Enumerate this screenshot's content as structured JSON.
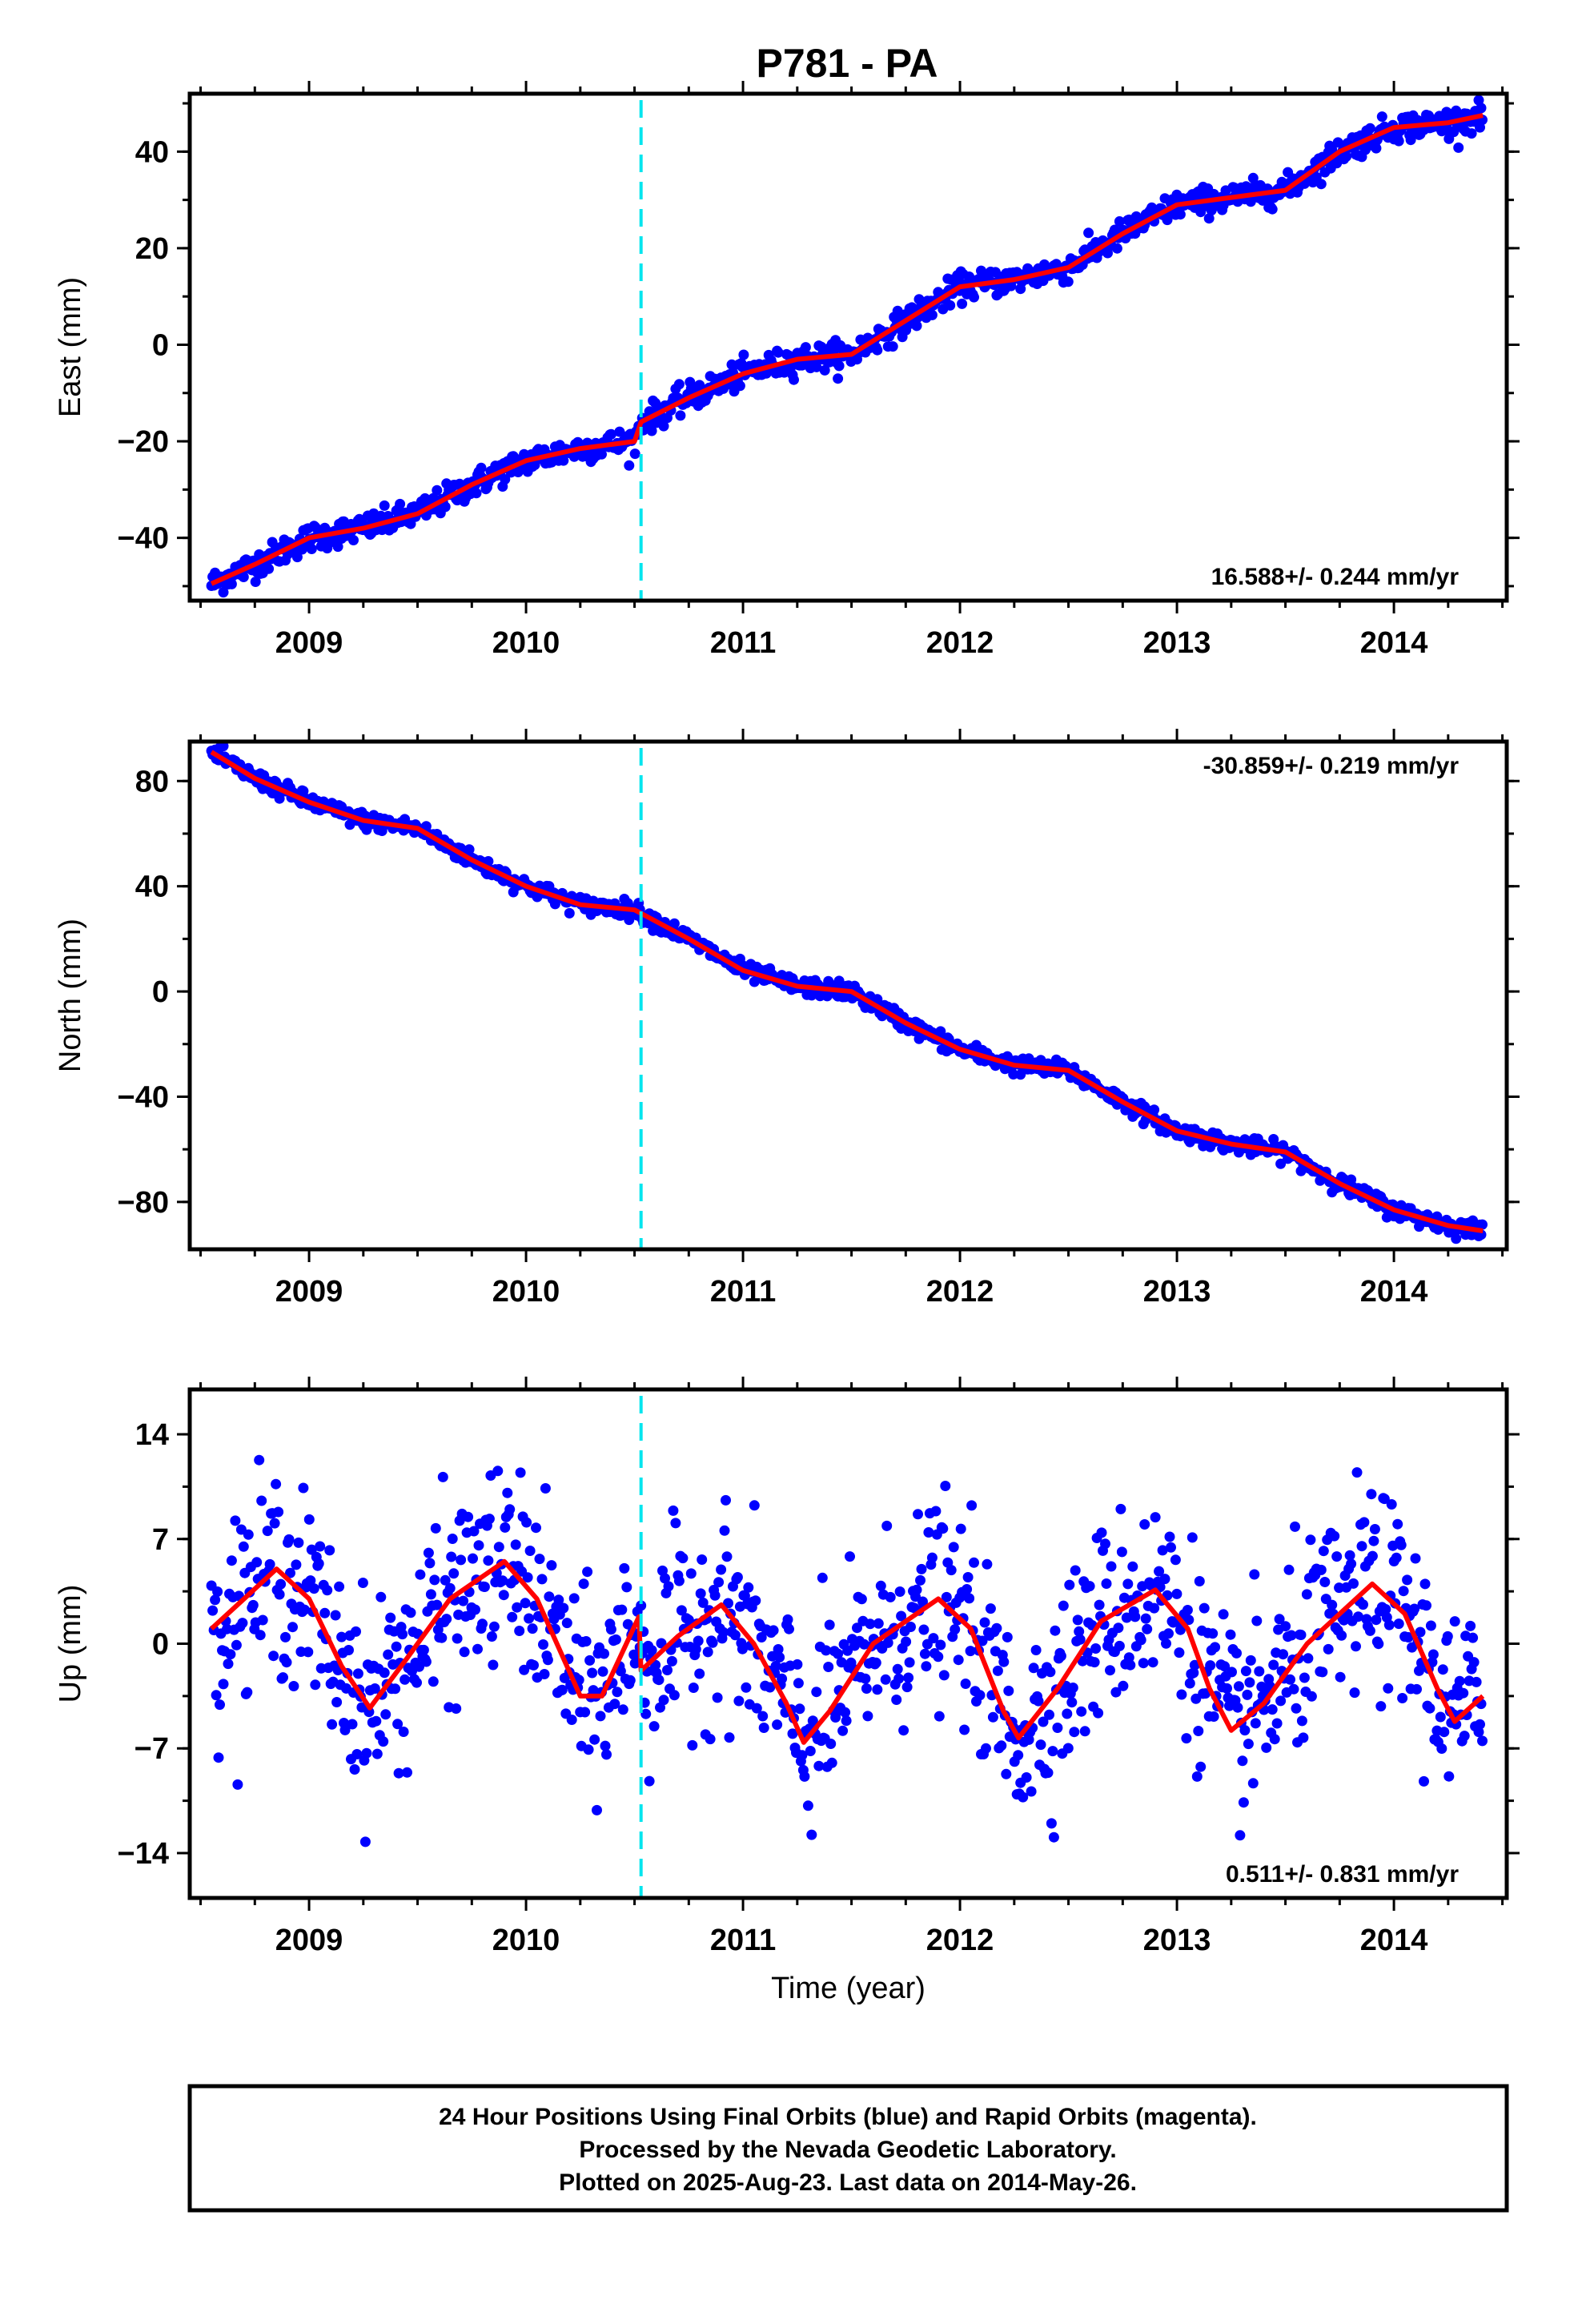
{
  "title": "P781 - PA",
  "colors": {
    "points": "#0000ff",
    "model": "#ff0000",
    "event_line": "#00e5ee",
    "frame": "#000000"
  },
  "chart_data": [
    {
      "type": "scatter",
      "panel": "east",
      "ylabel": "East (mm)",
      "xlabel": "",
      "rate_text": "16.588+/- 0.244 mm/yr",
      "rate_position": "bottom-right",
      "xlim": [
        2008.45,
        2014.52
      ],
      "ylim": [
        -53,
        52
      ],
      "yticks": [
        -40,
        -20,
        0,
        20,
        40
      ],
      "xticks": [
        2009,
        2010,
        2011,
        2012,
        2013,
        2014
      ],
      "event_x": 2010.53,
      "model": [
        [
          2008.55,
          -49.5
        ],
        [
          2008.75,
          -45.5
        ],
        [
          2009.0,
          -40
        ],
        [
          2009.25,
          -38
        ],
        [
          2009.5,
          -35
        ],
        [
          2009.75,
          -29
        ],
        [
          2010.0,
          -24
        ],
        [
          2010.25,
          -21.5
        ],
        [
          2010.5,
          -20
        ],
        [
          2010.53,
          -16
        ],
        [
          2010.75,
          -11
        ],
        [
          2011.0,
          -6
        ],
        [
          2011.25,
          -3
        ],
        [
          2011.5,
          -2
        ],
        [
          2011.75,
          5
        ],
        [
          2012.0,
          12
        ],
        [
          2012.25,
          13.5
        ],
        [
          2012.5,
          16
        ],
        [
          2012.75,
          23
        ],
        [
          2013.0,
          29
        ],
        [
          2013.25,
          30.5
        ],
        [
          2013.5,
          32
        ],
        [
          2013.75,
          40
        ],
        [
          2014.0,
          45
        ],
        [
          2014.25,
          46
        ],
        [
          2014.41,
          47.5
        ]
      ],
      "noise": 1.4
    },
    {
      "type": "scatter",
      "panel": "north",
      "ylabel": "North (mm)",
      "xlabel": "",
      "rate_text": "-30.859+/- 0.219 mm/yr",
      "rate_position": "top-right",
      "xlim": [
        2008.45,
        2014.52
      ],
      "ylim": [
        -98,
        95
      ],
      "yticks": [
        -80,
        -40,
        0,
        40,
        80
      ],
      "xticks": [
        2009,
        2010,
        2011,
        2012,
        2013,
        2014
      ],
      "event_x": 2010.53,
      "model": [
        [
          2008.55,
          91
        ],
        [
          2008.75,
          81
        ],
        [
          2009.0,
          72
        ],
        [
          2009.25,
          65
        ],
        [
          2009.5,
          62
        ],
        [
          2009.75,
          50
        ],
        [
          2010.0,
          40
        ],
        [
          2010.25,
          33
        ],
        [
          2010.5,
          31
        ],
        [
          2010.75,
          20
        ],
        [
          2011.0,
          8
        ],
        [
          2011.25,
          2
        ],
        [
          2011.5,
          0
        ],
        [
          2011.75,
          -12
        ],
        [
          2012.0,
          -22
        ],
        [
          2012.25,
          -28
        ],
        [
          2012.5,
          -30
        ],
        [
          2012.75,
          -42
        ],
        [
          2013.0,
          -53
        ],
        [
          2013.25,
          -58
        ],
        [
          2013.5,
          -61
        ],
        [
          2013.75,
          -73
        ],
        [
          2014.0,
          -83
        ],
        [
          2014.25,
          -89
        ],
        [
          2014.41,
          -91
        ]
      ],
      "noise": 1.6
    },
    {
      "type": "scatter",
      "panel": "up",
      "ylabel": "Up (mm)",
      "xlabel": "Time (year)",
      "rate_text": "0.511+/- 0.831 mm/yr",
      "rate_position": "bottom-right",
      "xlim": [
        2008.45,
        2014.52
      ],
      "ylim": [
        -17,
        17
      ],
      "yticks": [
        -14,
        -7,
        0,
        7,
        14
      ],
      "xticks": [
        2009,
        2010,
        2011,
        2012,
        2013,
        2014
      ],
      "event_x": 2010.53,
      "model": [
        [
          2008.55,
          1
        ],
        [
          2008.7,
          3
        ],
        [
          2008.85,
          5
        ],
        [
          2009.0,
          3
        ],
        [
          2009.15,
          -1.5
        ],
        [
          2009.28,
          -4.3
        ],
        [
          2009.45,
          -1
        ],
        [
          2009.65,
          3
        ],
        [
          2009.9,
          5.5
        ],
        [
          2010.05,
          3
        ],
        [
          2010.25,
          -3.5
        ],
        [
          2010.35,
          -3.5
        ],
        [
          2010.52,
          1.8
        ],
        [
          2010.53,
          -1.8
        ],
        [
          2010.7,
          0.5
        ],
        [
          2010.9,
          2.6
        ],
        [
          2011.05,
          0
        ],
        [
          2011.2,
          -4
        ],
        [
          2011.28,
          -6.6
        ],
        [
          2011.4,
          -4.5
        ],
        [
          2011.6,
          0
        ],
        [
          2011.9,
          3
        ],
        [
          2012.05,
          1
        ],
        [
          2012.2,
          -4.5
        ],
        [
          2012.27,
          -6.3
        ],
        [
          2012.45,
          -3
        ],
        [
          2012.65,
          1.5
        ],
        [
          2012.9,
          3.6
        ],
        [
          2013.05,
          1
        ],
        [
          2013.15,
          -3
        ],
        [
          2013.25,
          -5.8
        ],
        [
          2013.4,
          -4
        ],
        [
          2013.6,
          0
        ],
        [
          2013.9,
          4
        ],
        [
          2014.05,
          2
        ],
        [
          2014.2,
          -3
        ],
        [
          2014.28,
          -5.2
        ],
        [
          2014.41,
          -3.5
        ]
      ],
      "noise": 3.2
    }
  ],
  "footer": {
    "line1": "24 Hour Positions Using Final Orbits (blue) and Rapid Orbits (magenta).",
    "line2": "Processed by the Nevada Geodetic Laboratory.",
    "line3": "Plotted on 2025-Aug-23. Last data on 2014-May-26."
  }
}
